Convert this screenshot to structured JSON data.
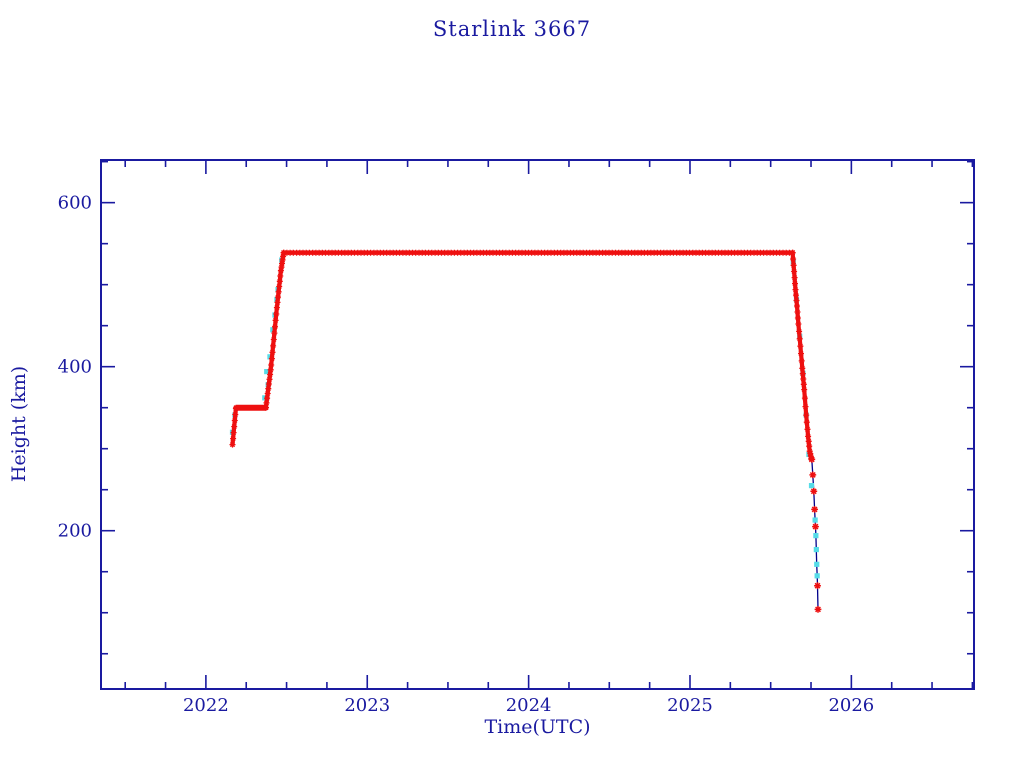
{
  "page": {
    "background": "#ffffff"
  },
  "chart_data": {
    "type": "scatter",
    "title": "Starlink 3667",
    "xlabel": "Time(UTC)",
    "ylabel": "Height (km)",
    "xlim": [
      2021.35,
      2026.76
    ],
    "ylim": [
      7,
      652
    ],
    "x_major_ticks": [
      2022,
      2023,
      2024,
      2025,
      2026
    ],
    "x_minor_step": 0.25,
    "y_major_ticks": [
      200,
      400,
      600
    ],
    "y_minor_step": 50,
    "grid": false,
    "legend": "none",
    "colors": {
      "axis": "#1a1aa0",
      "red_marker": "#ee1010",
      "cyan_marker": "#55dce8",
      "connect_line": "#00008b",
      "background": "#ffffff"
    },
    "series": [
      {
        "name": "connecting-line",
        "marker": "none",
        "color": "#00008b",
        "points": [
          [
            2022.165,
            305
          ],
          [
            2022.186,
            349
          ],
          [
            2022.37,
            350
          ],
          [
            2022.482,
            539
          ],
          [
            2025.636,
            539
          ],
          [
            2025.648,
            510
          ],
          [
            2025.66,
            482
          ],
          [
            2025.672,
            452
          ],
          [
            2025.684,
            425
          ],
          [
            2025.696,
            398
          ],
          [
            2025.708,
            372
          ],
          [
            2025.72,
            341
          ],
          [
            2025.732,
            315
          ],
          [
            2025.744,
            295
          ],
          [
            2025.755,
            287
          ],
          [
            2025.761,
            268
          ],
          [
            2025.767,
            248
          ],
          [
            2025.772,
            226
          ],
          [
            2025.7755,
            213
          ],
          [
            2025.778,
            205
          ],
          [
            2025.78,
            194
          ],
          [
            2025.783,
            177
          ],
          [
            2025.7855,
            159
          ],
          [
            2025.788,
            145
          ],
          [
            2025.79,
            133
          ],
          [
            2025.793,
            104
          ]
        ]
      },
      {
        "name": "height-cyan-squares",
        "marker": "square",
        "color": "#55dce8",
        "points": [
          [
            2022.165,
            320
          ],
          [
            2022.18,
            341
          ],
          [
            2022.365,
            362
          ],
          [
            2022.377,
            394
          ],
          [
            2022.386,
            378
          ],
          [
            2022.397,
            412
          ],
          [
            2022.415,
            445
          ],
          [
            2022.428,
            463
          ],
          [
            2022.44,
            482
          ],
          [
            2022.447,
            494
          ],
          [
            2022.47,
            530
          ],
          [
            2025.64,
            528
          ],
          [
            2025.66,
            482
          ],
          [
            2025.68,
            437
          ],
          [
            2025.7,
            392
          ],
          [
            2025.72,
            341
          ],
          [
            2025.737,
            293
          ],
          [
            2025.753,
            255
          ],
          [
            2025.7755,
            213
          ],
          [
            2025.78,
            194
          ],
          [
            2025.783,
            177
          ],
          [
            2025.7855,
            159
          ],
          [
            2025.788,
            145
          ]
        ]
      },
      {
        "name": "height-red-asterisks",
        "marker": "asterisk",
        "color": "#ee1010",
        "dense_segments": [
          {
            "step": 0.004,
            "points": [
              [
                2022.165,
                305
              ],
              [
                2022.186,
                349
              ]
            ]
          },
          {
            "step": 0.007,
            "points": [
              [
                2022.188,
                350
              ],
              [
                2022.372,
                350
              ]
            ]
          },
          {
            "step": 0.004,
            "points": [
              [
                2022.372,
                350
              ],
              [
                2022.405,
                402
              ],
              [
                2022.44,
                472
              ],
              [
                2022.465,
                517
              ],
              [
                2022.482,
                539
              ]
            ]
          },
          {
            "step": 0.02,
            "points": [
              [
                2022.482,
                539
              ],
              [
                2025.636,
                539
              ]
            ]
          },
          {
            "step": 0.004,
            "points": [
              [
                2025.636,
                539
              ],
              [
                2025.645,
                516
              ],
              [
                2025.654,
                494
              ],
              [
                2025.663,
                474
              ],
              [
                2025.672,
                452
              ],
              [
                2025.684,
                425
              ],
              [
                2025.696,
                398
              ],
              [
                2025.708,
                372
              ],
              [
                2025.72,
                341
              ],
              [
                2025.732,
                315
              ],
              [
                2025.742,
                297
              ],
              [
                2025.752,
                288
              ]
            ]
          }
        ],
        "points": [
          [
            2025.755,
            287
          ],
          [
            2025.761,
            268
          ],
          [
            2025.767,
            248
          ],
          [
            2025.772,
            226
          ],
          [
            2025.778,
            205
          ],
          [
            2025.79,
            133
          ],
          [
            2025.793,
            104
          ]
        ]
      }
    ]
  }
}
